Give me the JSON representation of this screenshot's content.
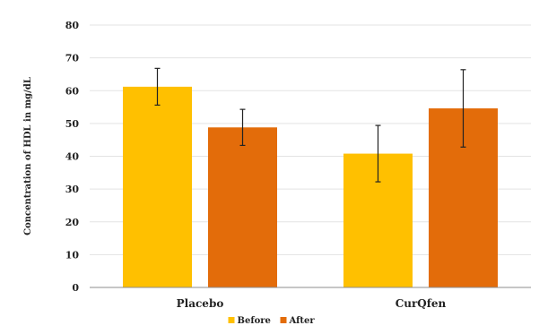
{
  "chart_data": {
    "type": "bar",
    "title": "",
    "xlabel": "",
    "ylabel": "Concentration of HDL in mg/dL",
    "ylim": [
      0,
      80
    ],
    "yticks": [
      0,
      10,
      20,
      30,
      40,
      50,
      60,
      70,
      80
    ],
    "grid": true,
    "legend_position": "bottom",
    "categories": [
      "Placebo",
      "CurQfen"
    ],
    "series": [
      {
        "name": "Before",
        "color": "#FFC000",
        "values": [
          61.2,
          40.8
        ],
        "error": [
          5.6,
          8.6
        ]
      },
      {
        "name": "After",
        "color": "#E36C0A",
        "values": [
          48.8,
          54.6
        ],
        "error": [
          5.5,
          11.8
        ]
      }
    ]
  }
}
